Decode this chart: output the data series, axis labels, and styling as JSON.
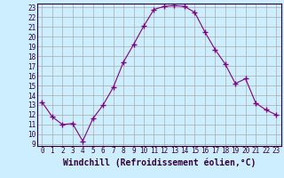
{
  "x": [
    0,
    1,
    2,
    3,
    4,
    5,
    6,
    7,
    8,
    9,
    10,
    11,
    12,
    13,
    14,
    15,
    16,
    17,
    18,
    19,
    20,
    21,
    22,
    23
  ],
  "y": [
    13.3,
    11.8,
    11.0,
    11.1,
    9.3,
    11.6,
    13.0,
    14.8,
    17.4,
    19.2,
    21.1,
    22.8,
    23.1,
    23.2,
    23.1,
    22.5,
    20.5,
    18.7,
    17.2,
    15.2,
    15.7,
    13.2,
    12.5,
    12.0
  ],
  "line_color": "#800080",
  "marker": "+",
  "marker_size": 4,
  "bg_color": "#cceeff",
  "grid_color": "#aaaaaa",
  "xlabel": "Windchill (Refroidissement éolien,°C)",
  "xlim": [
    -0.5,
    23.5
  ],
  "ylim": [
    8.8,
    23.4
  ],
  "yticks": [
    9,
    10,
    11,
    12,
    13,
    14,
    15,
    16,
    17,
    18,
    19,
    20,
    21,
    22,
    23
  ],
  "xticks": [
    0,
    1,
    2,
    3,
    4,
    5,
    6,
    7,
    8,
    9,
    10,
    11,
    12,
    13,
    14,
    15,
    16,
    17,
    18,
    19,
    20,
    21,
    22,
    23
  ],
  "tick_fontsize": 5.5,
  "xlabel_fontsize": 7.0
}
